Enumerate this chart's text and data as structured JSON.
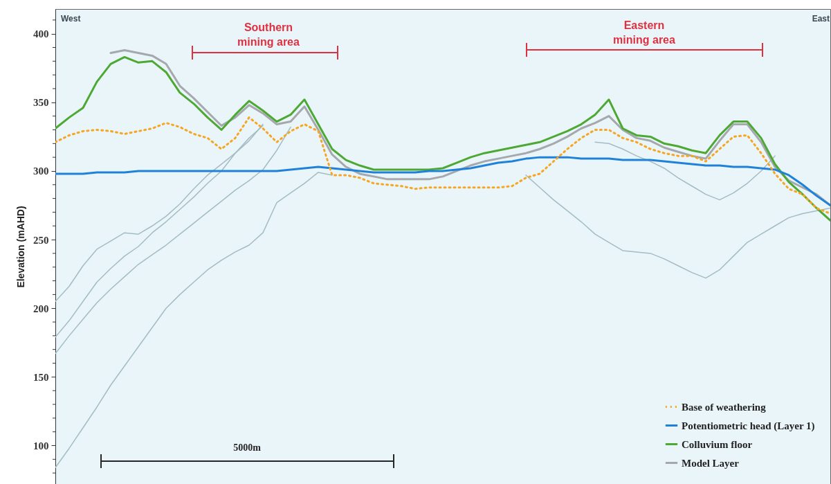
{
  "chart_data": {
    "type": "line",
    "ylabel": "Elevation (mAHD)",
    "categories": [
      null,
      null,
      null,
      null,
      null,
      null,
      null,
      null,
      null,
      null,
      null,
      null,
      null,
      null,
      null,
      null,
      null,
      null,
      null,
      null,
      null,
      null,
      null,
      null,
      null,
      null,
      null,
      null,
      null,
      null,
      null,
      null,
      null,
      null,
      null,
      null,
      null,
      null,
      null,
      null,
      null,
      null,
      null,
      null,
      null,
      null,
      null,
      null,
      null,
      null,
      null,
      null,
      null,
      null,
      null,
      null,
      null
    ],
    "ylim": [
      72,
      418
    ],
    "yticks": [
      {
        "value": 80,
        "label": null
      },
      {
        "value": 90,
        "label": null
      },
      100,
      {
        "value": 110,
        "label": null
      },
      {
        "value": 120,
        "label": null
      },
      {
        "value": 130,
        "label": null
      },
      {
        "value": 140,
        "label": null
      },
      150,
      {
        "value": 160,
        "label": null
      },
      {
        "value": 170,
        "label": null
      },
      {
        "value": 180,
        "label": null
      },
      {
        "value": 190,
        "label": null
      },
      200,
      {
        "value": 210,
        "label": null
      },
      {
        "value": 220,
        "label": null
      },
      {
        "value": 230,
        "label": null
      },
      {
        "value": 240,
        "label": null
      },
      250,
      {
        "value": 260,
        "label": null
      },
      {
        "value": 270,
        "label": null
      },
      {
        "value": 280,
        "label": null
      },
      {
        "value": 290,
        "label": null
      },
      300,
      {
        "value": 310,
        "label": null
      },
      {
        "value": 320,
        "label": null
      },
      {
        "value": 330,
        "label": null
      },
      {
        "value": 340,
        "label": null
      },
      350,
      {
        "value": 360,
        "label": null
      },
      {
        "value": 370,
        "label": null
      },
      {
        "value": 380,
        "label": null
      },
      {
        "value": 390,
        "label": null
      },
      400,
      {
        "value": 410,
        "label": null
      }
    ],
    "line_style": "solid",
    "tick_labels": "y",
    "legend": "bottom right",
    "series": [
      {
        "name": "Base of weathering",
        "color": "#f5a623",
        "line_style": "dotted",
        "values": [
          321,
          326,
          329,
          330,
          329,
          327,
          329,
          331,
          335,
          332,
          327,
          324,
          316,
          324,
          339,
          331,
          321,
          329,
          334,
          329,
          297,
          297,
          295,
          291,
          290,
          289,
          287,
          288,
          288,
          288,
          288,
          288,
          288,
          289,
          295,
          298,
          307,
          316,
          324,
          330,
          330,
          324,
          321,
          316,
          313,
          311,
          311,
          307,
          316,
          325,
          326,
          313,
          298,
          287,
          283,
          273,
          269
        ]
      },
      {
        "name": "Potentiometric head (Layer 1)",
        "color": "#1f82d8",
        "values": [
          298,
          298,
          298,
          299,
          299,
          299,
          300,
          300,
          300,
          300,
          300,
          300,
          300,
          300,
          300,
          300,
          300,
          301,
          302,
          303,
          302,
          301,
          300,
          299,
          299,
          299,
          299,
          300,
          300,
          301,
          302,
          304,
          306,
          307,
          309,
          310,
          310,
          310,
          309,
          309,
          309,
          308,
          308,
          308,
          307,
          306,
          305,
          304,
          304,
          303,
          303,
          302,
          301,
          297,
          290,
          282,
          275
        ]
      },
      {
        "name": "Colluvium floor",
        "color": "#4da834",
        "values": [
          331,
          339,
          346,
          365,
          378,
          383,
          379,
          380,
          372,
          357,
          349,
          339,
          330,
          341,
          351,
          344,
          336,
          341,
          352,
          334,
          316,
          308,
          304,
          301,
          301,
          301,
          301,
          301,
          302,
          306,
          310,
          313,
          315,
          317,
          319,
          321,
          325,
          329,
          334,
          341,
          352,
          331,
          326,
          325,
          320,
          318,
          315,
          313,
          326,
          336,
          336,
          324,
          305,
          292,
          283,
          273,
          264
        ]
      },
      {
        "name": "Model Layer",
        "color": "#a5a8ad",
        "values": [
          null,
          null,
          null,
          null,
          386,
          388,
          386,
          384,
          378,
          362,
          353,
          343,
          333,
          339,
          348,
          342,
          334,
          336,
          347,
          330,
          312,
          303,
          298,
          296,
          294,
          294,
          294,
          294,
          296,
          300,
          304,
          307,
          309,
          311,
          313,
          316,
          320,
          325,
          331,
          335,
          340,
          330,
          324,
          322,
          317,
          314,
          311,
          309,
          322,
          334,
          334,
          321,
          303,
          293,
          288,
          283,
          275
        ]
      },
      {
        "color": "#a3bcc4",
        "values": [
          205,
          216,
          231,
          243,
          249,
          255,
          254,
          260,
          267,
          276,
          287,
          297,
          305,
          313,
          322,
          334,
          null,
          null,
          null,
          null,
          null,
          null,
          null,
          null,
          null,
          null,
          null,
          null,
          null,
          null,
          null,
          null,
          null,
          null,
          null,
          null,
          null,
          null,
          null,
          null,
          null,
          null,
          null,
          null,
          null,
          null,
          null,
          null,
          null,
          null,
          null,
          null,
          null,
          null,
          null,
          null,
          null
        ]
      },
      {
        "color": "#a3bcc4",
        "values": [
          179,
          191,
          205,
          219,
          229,
          238,
          245,
          255,
          263,
          272,
          281,
          291,
          300,
          313,
          324,
          333,
          null,
          null,
          null,
          null,
          null,
          null,
          null,
          null,
          null,
          null,
          null,
          null,
          null,
          null,
          null,
          null,
          null,
          null,
          null,
          null,
          null,
          null,
          null,
          null,
          null,
          null,
          null,
          null,
          null,
          null,
          null,
          null,
          null,
          null,
          null,
          null,
          null,
          null,
          null,
          null,
          null
        ]
      },
      {
        "color": "#a3bcc4",
        "values": [
          167,
          180,
          192,
          204,
          214,
          223,
          232,
          239,
          246,
          254,
          262,
          270,
          278,
          286,
          293,
          301,
          315,
          332,
          null,
          null,
          null,
          null,
          null,
          null,
          null,
          null,
          null,
          null,
          null,
          null,
          null,
          null,
          null,
          null,
          null,
          null,
          null,
          null,
          null,
          null,
          null,
          null,
          null,
          null,
          null,
          null,
          null,
          null,
          null,
          null,
          null,
          null,
          null,
          null,
          null,
          null,
          null
        ]
      },
      {
        "color": "#a3bcc4",
        "values": [
          84,
          98,
          113,
          128,
          144,
          158,
          172,
          186,
          200,
          210,
          219,
          228,
          235,
          241,
          246,
          255,
          277,
          284,
          291,
          299,
          297,
          null,
          null,
          null,
          null,
          null,
          null,
          null,
          null,
          null,
          null,
          null,
          null,
          null,
          null,
          null,
          null,
          null,
          null,
          null,
          null,
          null,
          null,
          null,
          null,
          null,
          null,
          null,
          null,
          null,
          null,
          null,
          null,
          null,
          null,
          null,
          null
        ]
      },
      {
        "color": "#a3bcc4",
        "values": [
          null,
          null,
          null,
          null,
          null,
          null,
          null,
          null,
          null,
          null,
          null,
          null,
          null,
          null,
          null,
          null,
          null,
          null,
          null,
          null,
          null,
          null,
          null,
          null,
          null,
          null,
          null,
          null,
          null,
          null,
          null,
          null,
          null,
          null,
          297,
          288,
          279,
          271,
          263,
          254,
          248,
          242,
          241,
          240,
          236,
          231,
          226,
          222,
          228,
          238,
          248,
          254,
          260,
          266,
          269,
          271,
          273
        ]
      },
      {
        "color": "#a3bcc4",
        "values": [
          null,
          null,
          null,
          null,
          null,
          null,
          null,
          null,
          null,
          null,
          null,
          null,
          null,
          null,
          null,
          null,
          null,
          null,
          null,
          null,
          null,
          null,
          null,
          null,
          null,
          null,
          null,
          null,
          null,
          null,
          null,
          null,
          null,
          null,
          null,
          null,
          null,
          null,
          null,
          321,
          320,
          316,
          311,
          307,
          302,
          295,
          289,
          283,
          279,
          284,
          291,
          300,
          311,
          null,
          null,
          null,
          null
        ]
      }
    ],
    "annotations": [
      "West",
      "East",
      "Southern mining area",
      "Eastern mining area",
      "5000m"
    ]
  }
}
